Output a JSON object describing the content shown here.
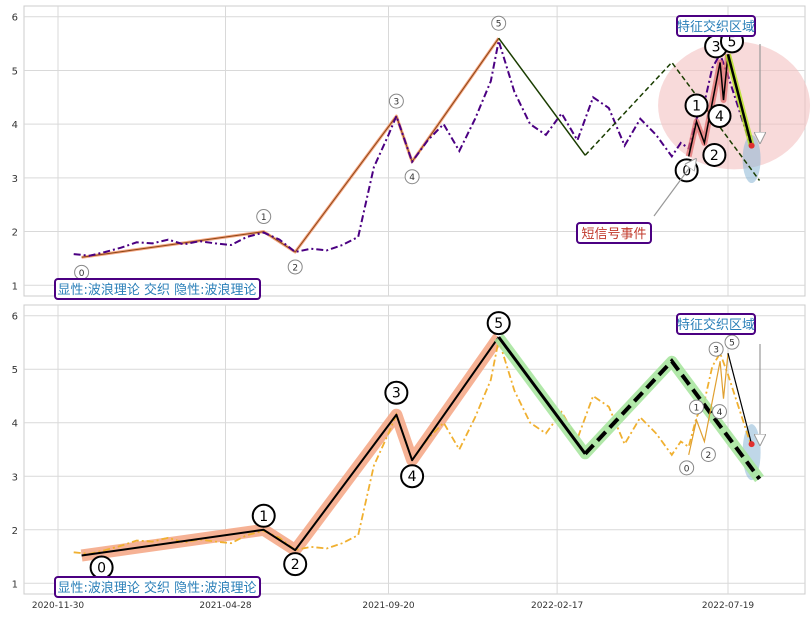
{
  "chart_data": [
    {
      "type": "line",
      "panel": "top",
      "ylim": [
        0.8,
        6.2
      ],
      "y_ticks": [
        1,
        2,
        3,
        4,
        5,
        6
      ],
      "grid": true,
      "colors": {
        "price": "#4b0082",
        "wave_fill": "#f4a582",
        "wave_line": "#8b4513",
        "forecast_line": "#1a3d00",
        "highlight": "#f4c2c2"
      },
      "price_series": [
        {
          "x": "2020-12-14",
          "y": 1.58
        },
        {
          "x": "2020-12-28",
          "y": 1.55
        },
        {
          "x": "2021-01-11",
          "y": 1.62
        },
        {
          "x": "2021-01-25",
          "y": 1.7
        },
        {
          "x": "2021-02-08",
          "y": 1.8
        },
        {
          "x": "2021-02-22",
          "y": 1.78
        },
        {
          "x": "2021-03-08",
          "y": 1.85
        },
        {
          "x": "2021-03-22",
          "y": 1.76
        },
        {
          "x": "2021-04-05",
          "y": 1.82
        },
        {
          "x": "2021-04-19",
          "y": 1.78
        },
        {
          "x": "2021-05-03",
          "y": 1.75
        },
        {
          "x": "2021-05-17",
          "y": 1.9
        },
        {
          "x": "2021-06-01",
          "y": 1.98
        },
        {
          "x": "2021-06-15",
          "y": 1.85
        },
        {
          "x": "2021-06-29",
          "y": 1.62
        },
        {
          "x": "2021-07-13",
          "y": 1.68
        },
        {
          "x": "2021-07-27",
          "y": 1.65
        },
        {
          "x": "2021-08-10",
          "y": 1.75
        },
        {
          "x": "2021-08-24",
          "y": 1.9
        },
        {
          "x": "2021-09-07",
          "y": 3.2
        },
        {
          "x": "2021-09-20",
          "y": 3.8
        },
        {
          "x": "2021-09-27",
          "y": 4.15
        },
        {
          "x": "2021-10-11",
          "y": 3.3
        },
        {
          "x": "2021-10-25",
          "y": 3.7
        },
        {
          "x": "2021-11-08",
          "y": 4.0
        },
        {
          "x": "2021-11-22",
          "y": 3.5
        },
        {
          "x": "2021-12-06",
          "y": 4.1
        },
        {
          "x": "2021-12-20",
          "y": 4.8
        },
        {
          "x": "2021-12-27",
          "y": 5.55
        },
        {
          "x": "2022-01-10",
          "y": 4.6
        },
        {
          "x": "2022-01-24",
          "y": 4.0
        },
        {
          "x": "2022-02-07",
          "y": 3.8
        },
        {
          "x": "2022-02-21",
          "y": 4.2
        },
        {
          "x": "2022-03-07",
          "y": 3.7
        },
        {
          "x": "2022-03-21",
          "y": 4.5
        },
        {
          "x": "2022-04-04",
          "y": 4.3
        },
        {
          "x": "2022-04-18",
          "y": 3.6
        },
        {
          "x": "2022-05-02",
          "y": 4.1
        },
        {
          "x": "2022-05-16",
          "y": 3.8
        },
        {
          "x": "2022-05-30",
          "y": 3.4
        },
        {
          "x": "2022-06-07",
          "y": 3.65
        },
        {
          "x": "2022-06-14",
          "y": 3.55
        },
        {
          "x": "2022-06-21",
          "y": 4.1
        },
        {
          "x": "2022-06-28",
          "y": 4.4
        },
        {
          "x": "2022-07-05",
          "y": 5.05
        },
        {
          "x": "2022-07-12",
          "y": 5.3
        },
        {
          "x": "2022-07-19",
          "y": 4.9
        },
        {
          "x": "2022-08-02",
          "y": 4.0
        },
        {
          "x": "2022-08-09",
          "y": 3.55
        }
      ],
      "wave_points": [
        {
          "label": "0",
          "x": "2020-12-21",
          "y": 1.52
        },
        {
          "label": "1",
          "x": "2021-06-01",
          "y": 2.0
        },
        {
          "label": "2",
          "x": "2021-06-29",
          "y": 1.62
        },
        {
          "label": "3",
          "x": "2021-09-27",
          "y": 4.15
        },
        {
          "label": "4",
          "x": "2021-10-11",
          "y": 3.3
        },
        {
          "label": "5",
          "x": "2021-12-27",
          "y": 5.6
        }
      ],
      "forecast_points": [
        {
          "x": "2021-12-27",
          "y": 5.6
        },
        {
          "x": "2022-03-14",
          "y": 3.42
        },
        {
          "x": "2022-05-30",
          "y": 5.15
        },
        {
          "x": "2022-08-16",
          "y": 2.95
        }
      ],
      "sub_wave_points": [
        {
          "label": "0",
          "x": "2022-06-14",
          "y": 3.4
        },
        {
          "label": "1",
          "x": "2022-06-21",
          "y": 4.05
        },
        {
          "label": "2",
          "x": "2022-06-28",
          "y": 3.65
        },
        {
          "label": "3",
          "x": "2022-07-12",
          "y": 5.15
        },
        {
          "label": "4",
          "x": "2022-07-15",
          "y": 4.45
        },
        {
          "label": "5",
          "x": "2022-07-19",
          "y": 5.3
        }
      ],
      "projection_end": {
        "x": "2022-08-09",
        "y": 3.6
      },
      "annotations": {
        "feature_zone": "特征交织区域",
        "short_signal": "短信号事件",
        "legend_text": "显性:波浪理论 交织 隐性:波浪理论"
      }
    },
    {
      "type": "line",
      "panel": "bottom",
      "ylim": [
        0.8,
        6.2
      ],
      "y_ticks": [
        1,
        2,
        3,
        4,
        5,
        6
      ],
      "grid": true,
      "x_ticks": [
        "2020-11-30",
        "2021-04-28",
        "2021-09-20",
        "2022-02-17",
        "2022-07-19"
      ],
      "colors": {
        "price": "#f0b030",
        "wave_fill": "#f4a582",
        "forecast_fill": "#a8e6a0",
        "black": "#000000"
      },
      "price_series": [
        {
          "x": "2020-12-14",
          "y": 1.58
        },
        {
          "x": "2020-12-28",
          "y": 1.55
        },
        {
          "x": "2021-01-11",
          "y": 1.62
        },
        {
          "x": "2021-01-25",
          "y": 1.7
        },
        {
          "x": "2021-02-08",
          "y": 1.8
        },
        {
          "x": "2021-02-22",
          "y": 1.78
        },
        {
          "x": "2021-03-08",
          "y": 1.85
        },
        {
          "x": "2021-03-22",
          "y": 1.76
        },
        {
          "x": "2021-04-05",
          "y": 1.82
        },
        {
          "x": "2021-04-19",
          "y": 1.78
        },
        {
          "x": "2021-05-03",
          "y": 1.75
        },
        {
          "x": "2021-05-17",
          "y": 1.9
        },
        {
          "x": "2021-06-01",
          "y": 1.98
        },
        {
          "x": "2021-06-15",
          "y": 1.85
        },
        {
          "x": "2021-06-29",
          "y": 1.62
        },
        {
          "x": "2021-07-13",
          "y": 1.68
        },
        {
          "x": "2021-07-27",
          "y": 1.65
        },
        {
          "x": "2021-08-10",
          "y": 1.75
        },
        {
          "x": "2021-08-24",
          "y": 1.9
        },
        {
          "x": "2021-09-07",
          "y": 3.2
        },
        {
          "x": "2021-09-20",
          "y": 3.8
        },
        {
          "x": "2021-09-27",
          "y": 4.15
        },
        {
          "x": "2021-10-11",
          "y": 3.3
        },
        {
          "x": "2021-10-25",
          "y": 3.7
        },
        {
          "x": "2021-11-08",
          "y": 4.0
        },
        {
          "x": "2021-11-22",
          "y": 3.5
        },
        {
          "x": "2021-12-06",
          "y": 4.1
        },
        {
          "x": "2021-12-20",
          "y": 4.8
        },
        {
          "x": "2021-12-27",
          "y": 5.55
        },
        {
          "x": "2022-01-10",
          "y": 4.6
        },
        {
          "x": "2022-01-24",
          "y": 4.0
        },
        {
          "x": "2022-02-07",
          "y": 3.8
        },
        {
          "x": "2022-02-21",
          "y": 4.2
        },
        {
          "x": "2022-03-07",
          "y": 3.7
        },
        {
          "x": "2022-03-21",
          "y": 4.5
        },
        {
          "x": "2022-04-04",
          "y": 4.3
        },
        {
          "x": "2022-04-18",
          "y": 3.6
        },
        {
          "x": "2022-05-02",
          "y": 4.1
        },
        {
          "x": "2022-05-16",
          "y": 3.8
        },
        {
          "x": "2022-05-30",
          "y": 3.4
        },
        {
          "x": "2022-06-07",
          "y": 3.65
        },
        {
          "x": "2022-06-14",
          "y": 3.55
        },
        {
          "x": "2022-06-21",
          "y": 4.1
        },
        {
          "x": "2022-06-28",
          "y": 4.4
        },
        {
          "x": "2022-07-05",
          "y": 5.05
        },
        {
          "x": "2022-07-12",
          "y": 5.3
        },
        {
          "x": "2022-07-19",
          "y": 4.9
        },
        {
          "x": "2022-08-02",
          "y": 4.0
        },
        {
          "x": "2022-08-09",
          "y": 3.55
        }
      ],
      "wave_points": [
        {
          "label": "0",
          "x": "2020-12-21",
          "y": 1.52
        },
        {
          "label": "1",
          "x": "2021-06-01",
          "y": 2.0
        },
        {
          "label": "2",
          "x": "2021-06-29",
          "y": 1.62
        },
        {
          "label": "3",
          "x": "2021-09-27",
          "y": 4.15
        },
        {
          "label": "4",
          "x": "2021-10-11",
          "y": 3.3
        },
        {
          "label": "5",
          "x": "2021-12-27",
          "y": 5.6
        }
      ],
      "forecast_points": [
        {
          "x": "2021-12-27",
          "y": 5.6
        },
        {
          "x": "2022-03-14",
          "y": 3.42
        },
        {
          "x": "2022-05-30",
          "y": 5.15
        },
        {
          "x": "2022-08-16",
          "y": 2.95
        }
      ],
      "sub_wave_points": [
        {
          "label": "0",
          "x": "2022-06-14",
          "y": 3.4
        },
        {
          "label": "1",
          "x": "2022-06-21",
          "y": 4.05
        },
        {
          "label": "2",
          "x": "2022-06-28",
          "y": 3.65
        },
        {
          "label": "3",
          "x": "2022-07-12",
          "y": 5.15
        },
        {
          "label": "4",
          "x": "2022-07-15",
          "y": 4.45
        },
        {
          "label": "5",
          "x": "2022-07-19",
          "y": 5.3
        }
      ],
      "projection_end": {
        "x": "2022-08-09",
        "y": 3.6
      },
      "annotations": {
        "feature_zone": "特征交织区域",
        "legend_text": "显性:波浪理论 交织 隐性:波浪理论"
      }
    }
  ]
}
